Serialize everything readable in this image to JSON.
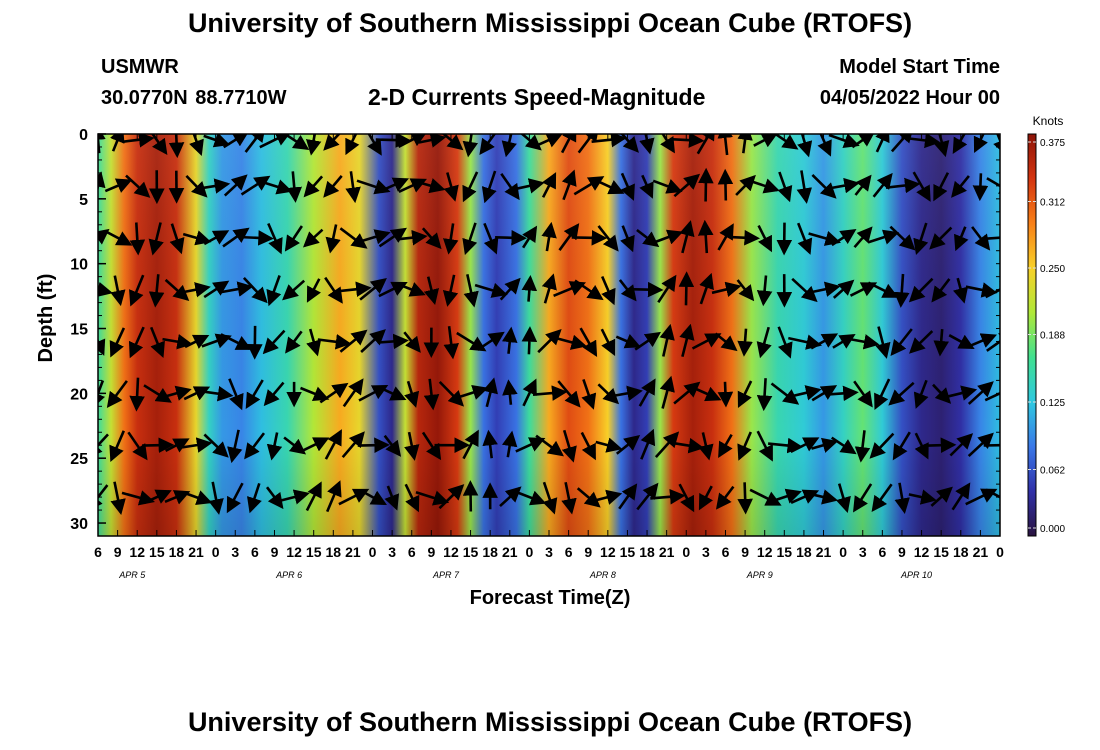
{
  "header": {
    "title": "University of Southern Mississippi Ocean Cube (RTOFS)",
    "station": "USMWR",
    "coords": "30.0770N  88.7710W",
    "subtitle": "2-D Currents Speed-Magnitude",
    "model_start_label": "Model Start Time",
    "model_start_value": "04/05/2022 Hour 00"
  },
  "footer": {
    "title_repeat": "University of Southern Mississippi Ocean Cube (RTOFS)"
  },
  "colors": {
    "colormap": [
      "#2a1440",
      "#3030a8",
      "#3a78e8",
      "#2ec8e0",
      "#40e090",
      "#b0e838",
      "#f8d028",
      "#f88018",
      "#d43410",
      "#8c1408"
    ],
    "arrow": "#000000"
  },
  "chart_data": {
    "type": "heatmap",
    "xlabel": "Forecast Time(Z)",
    "ylabel": "Depth (ft)",
    "colorbar_label": "Knots",
    "colorbar_ticks": [
      "0.000",
      "0.062",
      "0.125",
      "0.188",
      "0.250",
      "0.312",
      "0.375"
    ],
    "vlim": [
      0,
      0.375
    ],
    "ylim": [
      0,
      31
    ],
    "yticks": [
      0,
      5,
      10,
      15,
      20,
      25,
      30
    ],
    "x_hours_range": [
      6,
      144
    ],
    "x_tick_labels": [
      "6",
      "9",
      "12",
      "15",
      "18",
      "21",
      "0",
      "3",
      "6",
      "9",
      "12",
      "15",
      "18",
      "21",
      "0",
      "3",
      "6",
      "9",
      "12",
      "15",
      "18",
      "21",
      "0",
      "3",
      "6",
      "9",
      "12",
      "15",
      "18",
      "21",
      "0",
      "3",
      "6",
      "9",
      "12",
      "15",
      "18",
      "21",
      "0",
      "3",
      "6",
      "9",
      "12",
      "15",
      "18",
      "21",
      "0"
    ],
    "day_labels": [
      "APR 5",
      "APR 6",
      "APR 7",
      "APR 8",
      "APR 9",
      "APR 10"
    ],
    "arrow_depths": [
      0,
      4,
      8,
      12,
      16,
      20,
      24,
      28
    ],
    "arrow_time_step_hours": 3,
    "speed_profile": [
      {
        "h": 6,
        "v": 0.16
      },
      {
        "h": 8,
        "v": 0.22
      },
      {
        "h": 10,
        "v": 0.3
      },
      {
        "h": 12,
        "v": 0.34
      },
      {
        "h": 15,
        "v": 0.36
      },
      {
        "h": 18,
        "v": 0.34
      },
      {
        "h": 21,
        "v": 0.24
      },
      {
        "h": 23,
        "v": 0.14
      },
      {
        "h": 25,
        "v": 0.1
      },
      {
        "h": 28,
        "v": 0.09
      },
      {
        "h": 31,
        "v": 0.12
      },
      {
        "h": 35,
        "v": 0.15
      },
      {
        "h": 39,
        "v": 0.21
      },
      {
        "h": 43,
        "v": 0.27
      },
      {
        "h": 46,
        "v": 0.24
      },
      {
        "h": 49,
        "v": 0.06
      },
      {
        "h": 51,
        "v": 0.03
      },
      {
        "h": 53,
        "v": 0.22
      },
      {
        "h": 55,
        "v": 0.35
      },
      {
        "h": 58,
        "v": 0.37
      },
      {
        "h": 61,
        "v": 0.33
      },
      {
        "h": 63,
        "v": 0.2
      },
      {
        "h": 65,
        "v": 0.08
      },
      {
        "h": 67,
        "v": 0.05
      },
      {
        "h": 70,
        "v": 0.08
      },
      {
        "h": 72,
        "v": 0.16
      },
      {
        "h": 75,
        "v": 0.27
      },
      {
        "h": 78,
        "v": 0.32
      },
      {
        "h": 81,
        "v": 0.3
      },
      {
        "h": 84,
        "v": 0.25
      },
      {
        "h": 86,
        "v": 0.08
      },
      {
        "h": 88,
        "v": 0.03
      },
      {
        "h": 90,
        "v": 0.05
      },
      {
        "h": 92,
        "v": 0.2
      },
      {
        "h": 94,
        "v": 0.33
      },
      {
        "h": 97,
        "v": 0.36
      },
      {
        "h": 100,
        "v": 0.34
      },
      {
        "h": 103,
        "v": 0.3
      },
      {
        "h": 106,
        "v": 0.2
      },
      {
        "h": 110,
        "v": 0.15
      },
      {
        "h": 114,
        "v": 0.13
      },
      {
        "h": 117,
        "v": 0.1
      },
      {
        "h": 120,
        "v": 0.14
      },
      {
        "h": 123,
        "v": 0.18
      },
      {
        "h": 126,
        "v": 0.13
      },
      {
        "h": 129,
        "v": 0.06
      },
      {
        "h": 132,
        "v": 0.03
      },
      {
        "h": 135,
        "v": 0.02
      },
      {
        "h": 138,
        "v": 0.04
      },
      {
        "h": 141,
        "v": 0.09
      },
      {
        "h": 144,
        "v": 0.12
      }
    ]
  }
}
